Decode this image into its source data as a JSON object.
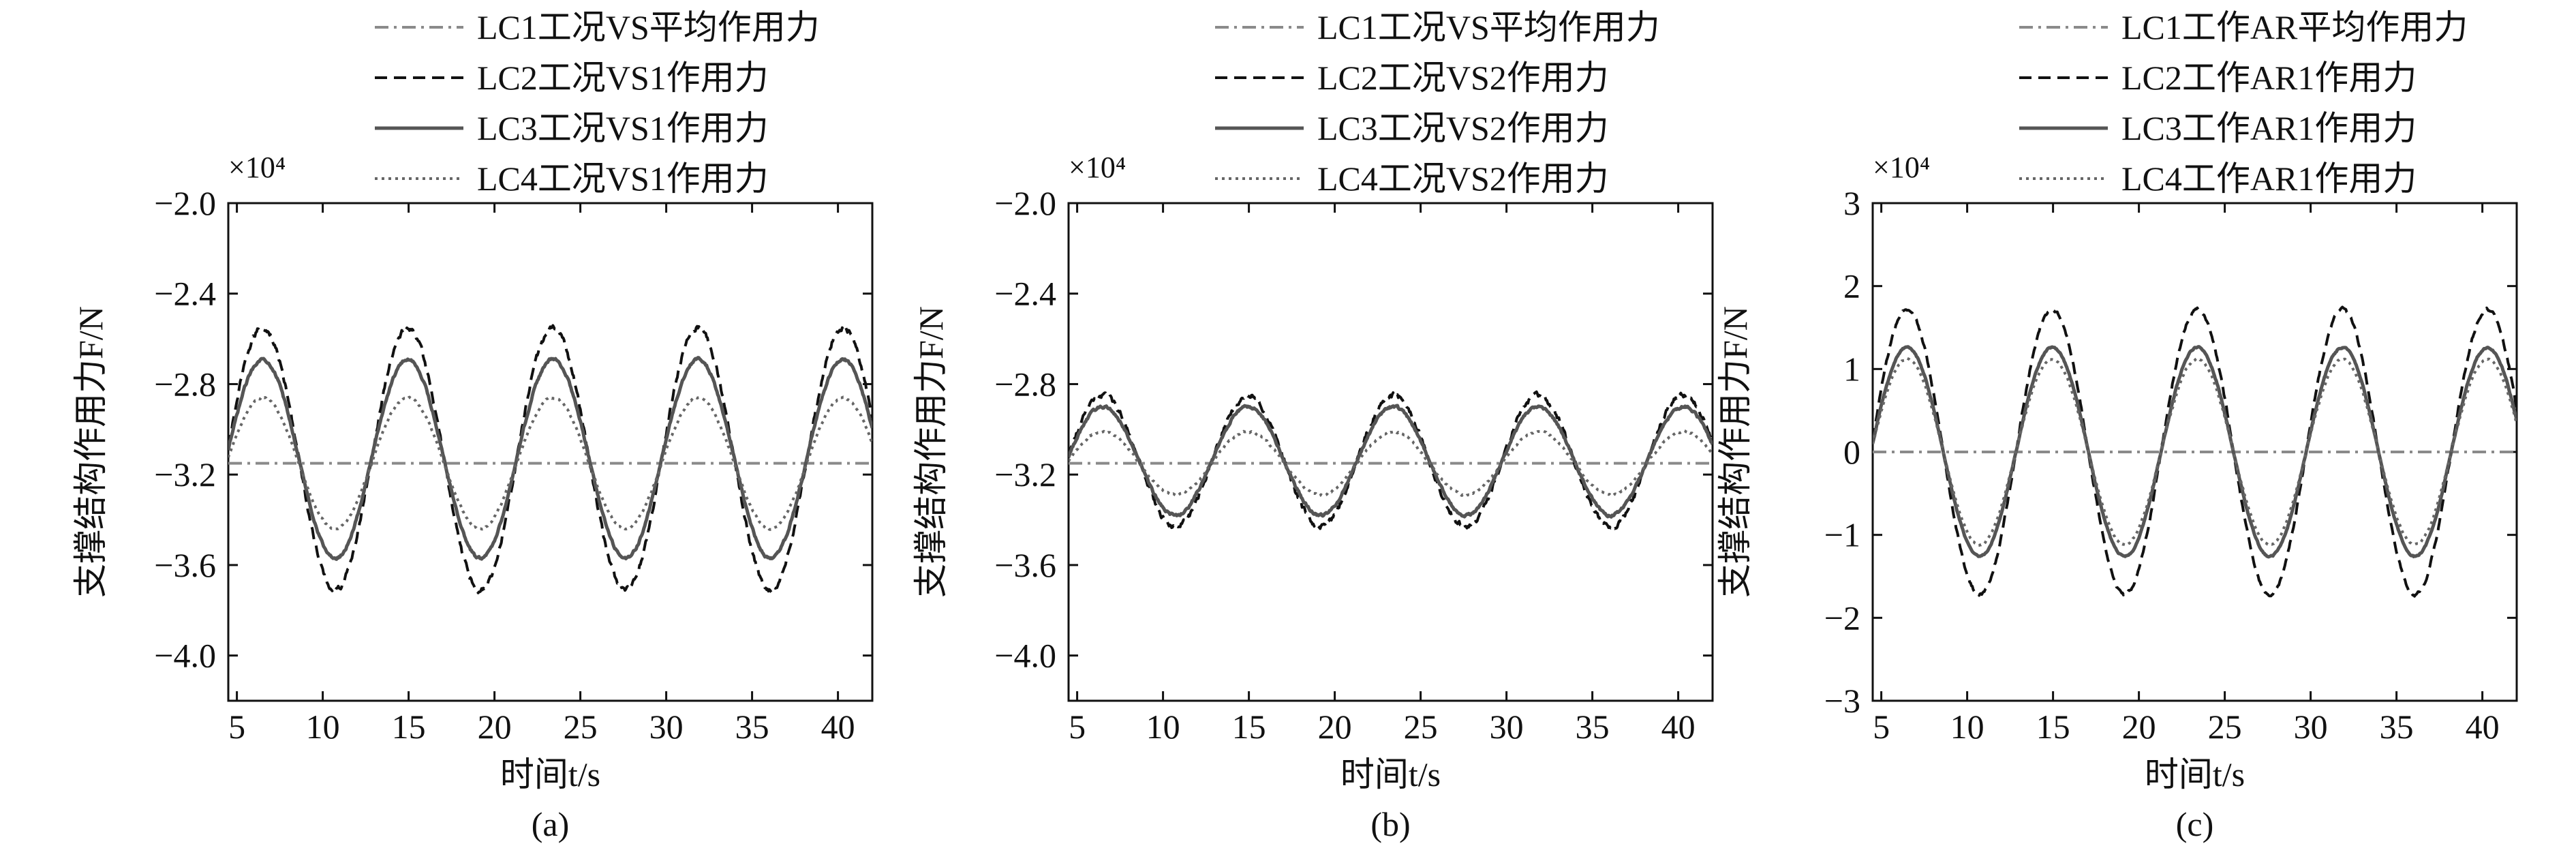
{
  "chart_data": [
    {
      "type": "line",
      "panel_label": "(a)",
      "xlabel": "时间t/s",
      "ylabel": "支撑结构作用力F/N",
      "exponent": "×10⁴",
      "xlim": [
        4.5,
        42
      ],
      "ylim": [
        -4.2,
        -2.0
      ],
      "xticks": [
        5,
        10,
        15,
        20,
        25,
        30,
        35,
        40
      ],
      "xtick_labels": [
        "5",
        "10",
        "15",
        "20",
        "25",
        "30",
        "35",
        "40"
      ],
      "yticks": [
        -4.0,
        -3.6,
        -3.2,
        -2.8,
        -2.4,
        -2.0
      ],
      "ytick_labels": [
        "−4.0",
        "−3.6",
        "−3.2",
        "−2.8",
        "−2.4",
        "−2.0"
      ],
      "legend": "top-center",
      "series": [
        {
          "name": "LC1工况VS平均作用力",
          "color": "#8a8a8a",
          "dash": "dashdot",
          "mean": -3.15,
          "amp": 0,
          "peak_first": 6.5,
          "period": 8.45,
          "noise": 0
        },
        {
          "name": "LC2工况VS1作用力",
          "color": "#111111",
          "dash": "dashed",
          "mean": -3.13,
          "amp": 0.58,
          "peak_first": 6.5,
          "period": 8.45,
          "noise": 0.012
        },
        {
          "name": "LC3工况VS1作用力",
          "color": "#555555",
          "dash": "solid",
          "mean": -3.13,
          "amp": 0.44,
          "peak_first": 6.5,
          "period": 8.45,
          "noise": 0.006
        },
        {
          "name": "LC4工况VS1作用力",
          "color": "#666666",
          "dash": "dotted",
          "mean": -3.15,
          "amp": 0.29,
          "peak_first": 6.5,
          "period": 8.45,
          "noise": 0.004
        }
      ]
    },
    {
      "type": "line",
      "panel_label": "(b)",
      "xlabel": "时间t/s",
      "ylabel": "支撑结构作用力F/N",
      "exponent": "×10⁴",
      "xlim": [
        4.5,
        42
      ],
      "ylim": [
        -4.2,
        -2.0
      ],
      "xticks": [
        5,
        10,
        15,
        20,
        25,
        30,
        35,
        40
      ],
      "xtick_labels": [
        "5",
        "10",
        "15",
        "20",
        "25",
        "30",
        "35",
        "40"
      ],
      "yticks": [
        -4.0,
        -3.6,
        -3.2,
        -2.8,
        -2.4,
        -2.0
      ],
      "ytick_labels": [
        "−4.0",
        "−3.6",
        "−3.2",
        "−2.8",
        "−2.4",
        "−2.0"
      ],
      "legend": "top-center",
      "series": [
        {
          "name": "LC1工况VS平均作用力",
          "color": "#8a8a8a",
          "dash": "dashdot",
          "mean": -3.15,
          "amp": 0,
          "peak_first": 6.5,
          "period": 8.45,
          "noise": 0
        },
        {
          "name": "LC2工况VS2作用力",
          "color": "#111111",
          "dash": "dashed",
          "mean": -3.14,
          "amp": 0.29,
          "peak_first": 6.5,
          "period": 8.45,
          "noise": 0.012
        },
        {
          "name": "LC3工况VS2作用力",
          "color": "#555555",
          "dash": "solid",
          "mean": -3.14,
          "amp": 0.24,
          "peak_first": 6.5,
          "period": 8.45,
          "noise": 0.006
        },
        {
          "name": "LC4工况VS2作用力",
          "color": "#666666",
          "dash": "dotted",
          "mean": -3.15,
          "amp": 0.14,
          "peak_first": 6.5,
          "period": 8.45,
          "noise": 0.004
        }
      ]
    },
    {
      "type": "line",
      "panel_label": "(c)",
      "xlabel": "时间t/s",
      "ylabel": "支撑结构作用力F/N",
      "exponent": "×10⁴",
      "xlim": [
        4.5,
        42
      ],
      "ylim": [
        -3,
        3
      ],
      "xticks": [
        5,
        10,
        15,
        20,
        25,
        30,
        35,
        40
      ],
      "xtick_labels": [
        "5",
        "10",
        "15",
        "20",
        "25",
        "30",
        "35",
        "40"
      ],
      "yticks": [
        -3,
        -2,
        -1,
        0,
        1,
        2,
        3
      ],
      "ytick_labels": [
        "−3",
        "−2",
        "−1",
        "0",
        "1",
        "2",
        "3"
      ],
      "legend": "top-center",
      "series": [
        {
          "name": "LC1工作AR平均作用力",
          "color": "#8a8a8a",
          "dash": "dashdot",
          "mean": 0,
          "amp": 0,
          "peak_first": 6.5,
          "period": 8.45,
          "noise": 0
        },
        {
          "name": "LC2工作AR1作用力",
          "color": "#111111",
          "dash": "dashed",
          "mean": 0,
          "amp": 1.72,
          "peak_first": 6.5,
          "period": 8.45,
          "noise": 0.02
        },
        {
          "name": "LC3工作AR1作用力",
          "color": "#555555",
          "dash": "solid",
          "mean": 0,
          "amp": 1.26,
          "peak_first": 6.5,
          "period": 8.45,
          "noise": 0.01
        },
        {
          "name": "LC4工作AR1作用力",
          "color": "#666666",
          "dash": "dotted",
          "mean": 0,
          "amp": 1.12,
          "peak_first": 6.5,
          "period": 8.45,
          "noise": 0.008
        }
      ]
    }
  ]
}
